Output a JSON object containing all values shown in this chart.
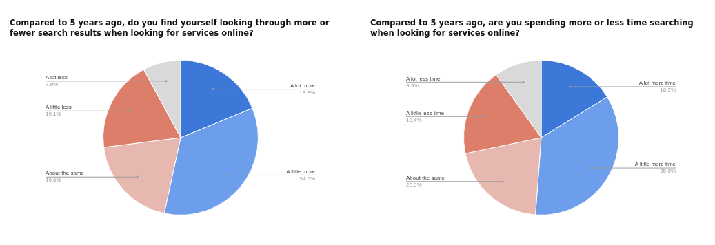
{
  "chart_data": [
    {
      "type": "pie",
      "title": "Compared to 5 years ago, do you find yourself looking through more or fewer search results when looking for services online?",
      "categories": [
        "A lot more",
        "A little more",
        "About the same",
        "A little less",
        "A lot less"
      ],
      "values": [
        18.8,
        34.6,
        19.6,
        19.1,
        7.9
      ],
      "value_labels": [
        "18.8%",
        "34.6%",
        "19.6%",
        "19.1%",
        "7.9%"
      ],
      "colors": [
        "#3c78d8",
        "#6d9eeb",
        "#e6b8af",
        "#dd7e6b",
        "#d9d9d9"
      ],
      "legend": false
    },
    {
      "type": "pie",
      "title": "Compared to 5 years ago, are you spending more or less time searching when looking for services online?",
      "categories": [
        "A lot more time",
        "A little more time",
        "About the same",
        "A little less time",
        "A lot less time"
      ],
      "values": [
        16.2,
        35.0,
        20.5,
        18.4,
        9.9
      ],
      "value_labels": [
        "16.2%",
        "35.0%",
        "20.5%",
        "18.4%",
        "9.9%"
      ],
      "colors": [
        "#3c78d8",
        "#6d9eeb",
        "#e6b8af",
        "#dd7e6b",
        "#d9d9d9"
      ],
      "legend": false
    }
  ]
}
